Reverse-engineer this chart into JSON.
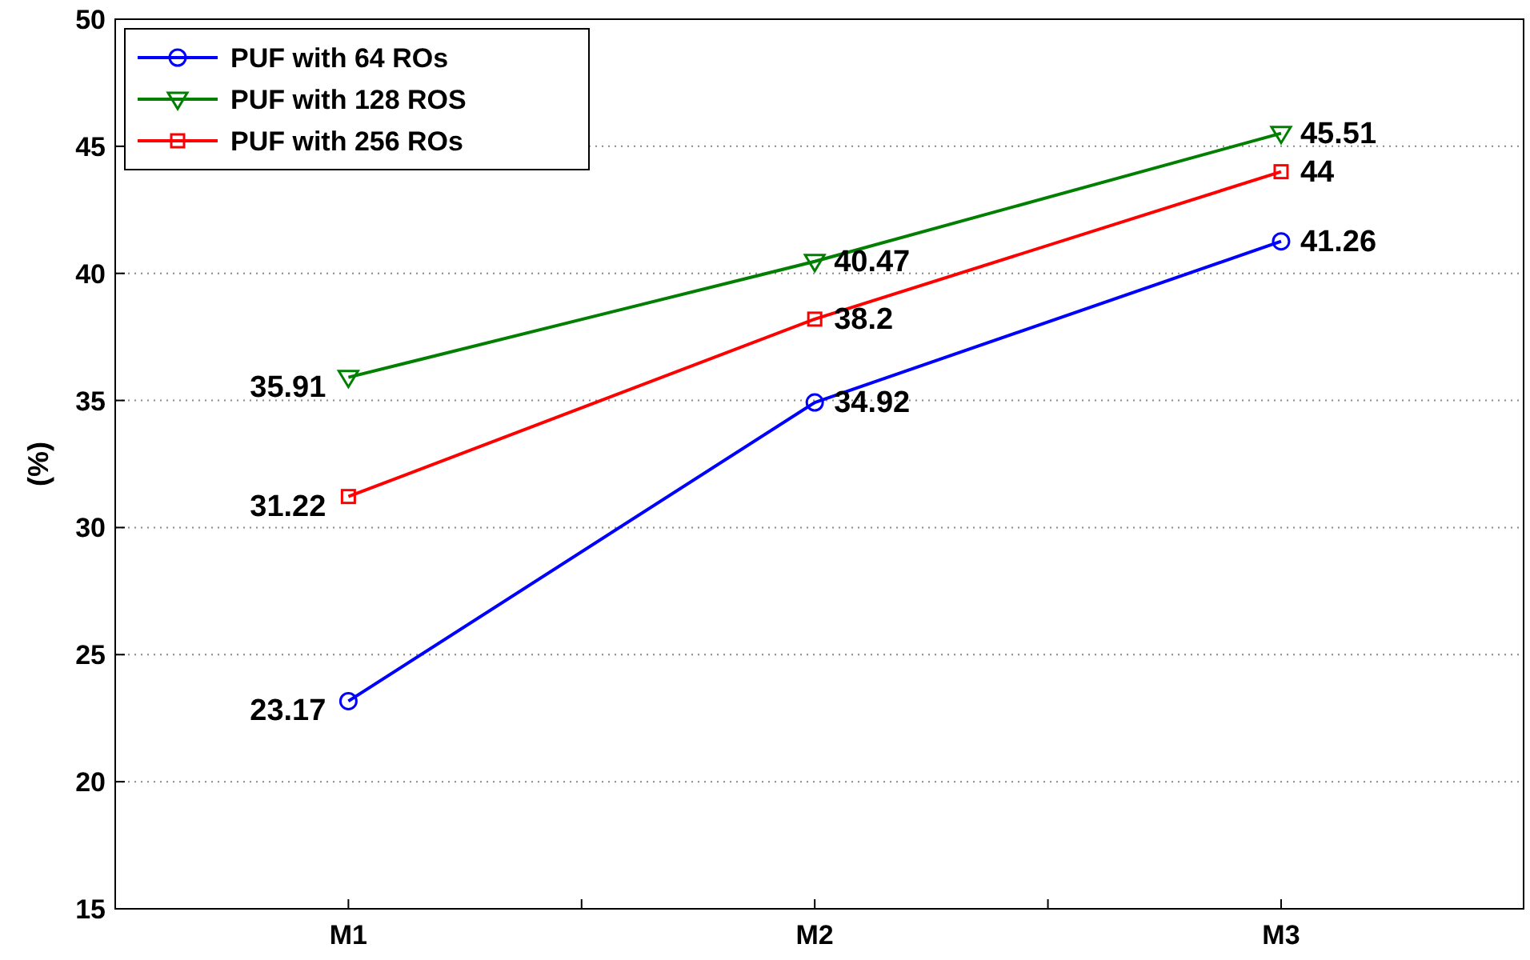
{
  "chart_data": {
    "type": "line",
    "ylabel": "(%)",
    "categories": [
      "M1",
      "M2",
      "M3"
    ],
    "series": [
      {
        "name": "PUF with 64 ROs",
        "color": "#0000ff",
        "marker": "circle",
        "values": [
          23.17,
          34.92,
          41.26
        ]
      },
      {
        "name": "PUF with 128 ROS",
        "color": "#007f00",
        "marker": "triangle",
        "values": [
          35.91,
          40.47,
          45.51
        ]
      },
      {
        "name": "PUF with 256 ROs",
        "color": "#ff0000",
        "marker": "square",
        "values": [
          31.22,
          38.2,
          44
        ]
      }
    ],
    "ylim": [
      15,
      50
    ],
    "yticks": [
      15,
      20,
      25,
      30,
      35,
      40,
      45,
      50
    ],
    "grid": "y",
    "legend": "top left",
    "data_labels": true
  }
}
